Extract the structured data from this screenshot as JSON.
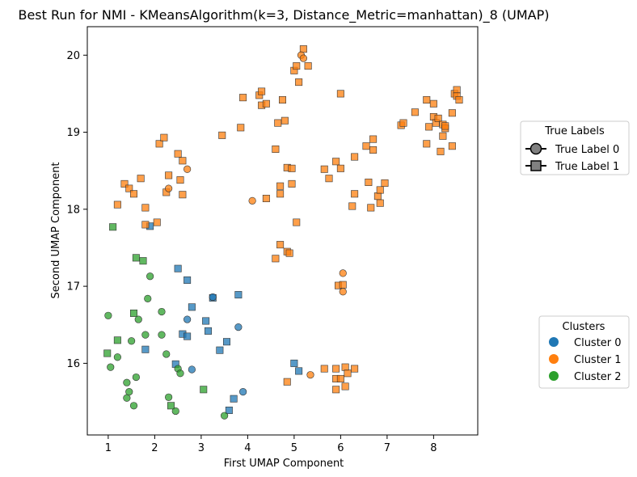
{
  "chart_data": {
    "type": "scatter",
    "title": "Best Run for NMI - KMeansAlgorithm(k=3, Distance_Metric=manhattan)_8 (UMAP)",
    "xlabel": "First UMAP Component",
    "ylabel": "Second UMAP Component",
    "xlim": [
      0.55,
      8.95
    ],
    "ylim": [
      15.07,
      20.37
    ],
    "xticks": [
      1,
      2,
      3,
      4,
      5,
      6,
      7,
      8
    ],
    "yticks": [
      16,
      17,
      18,
      19,
      20
    ],
    "grid": false,
    "legends": [
      {
        "title": "True Labels",
        "placement": "right-upper",
        "entries": [
          {
            "label": "True Label 0",
            "marker": "circle"
          },
          {
            "label": "True Label 1",
            "marker": "square"
          }
        ]
      },
      {
        "title": "Clusters",
        "placement": "right-lower",
        "entries": [
          {
            "label": "Cluster 0",
            "color": "#1f77b4"
          },
          {
            "label": "Cluster 1",
            "color": "#ff7f0e"
          },
          {
            "label": "Cluster 2",
            "color": "#2ca02c"
          }
        ]
      }
    ],
    "series": [
      {
        "name": "Cluster 0",
        "color": "#1f77b4",
        "circles": [
          [
            2.7,
            16.57
          ],
          [
            2.8,
            15.92
          ],
          [
            3.25,
            16.86
          ],
          [
            3.8,
            16.47
          ],
          [
            3.9,
            15.63
          ]
        ],
        "squares": [
          [
            1.9,
            17.78
          ],
          [
            2.5,
            17.23
          ],
          [
            2.7,
            17.08
          ],
          [
            2.8,
            16.73
          ],
          [
            2.6,
            16.38
          ],
          [
            2.7,
            16.35
          ],
          [
            3.1,
            16.55
          ],
          [
            3.15,
            16.42
          ],
          [
            3.25,
            16.85
          ],
          [
            3.8,
            16.89
          ],
          [
            3.55,
            16.28
          ],
          [
            3.4,
            16.17
          ],
          [
            1.8,
            16.18
          ],
          [
            2.45,
            15.99
          ],
          [
            3.7,
            15.54
          ],
          [
            3.6,
            15.39
          ],
          [
            5.0,
            16.0
          ],
          [
            5.1,
            15.9
          ]
        ]
      },
      {
        "name": "Cluster 1",
        "color": "#ff7f0e",
        "circles": [
          [
            2.3,
            18.27
          ],
          [
            2.7,
            18.52
          ],
          [
            4.1,
            18.11
          ],
          [
            5.15,
            20.0
          ],
          [
            5.2,
            19.96
          ],
          [
            5.35,
            15.85
          ],
          [
            6.05,
            17.17
          ],
          [
            6.05,
            16.93
          ]
        ],
        "squares": [
          [
            1.2,
            18.06
          ],
          [
            1.35,
            18.33
          ],
          [
            1.45,
            18.27
          ],
          [
            1.55,
            18.2
          ],
          [
            1.7,
            18.4
          ],
          [
            1.8,
            18.02
          ],
          [
            1.8,
            17.8
          ],
          [
            2.05,
            17.83
          ],
          [
            2.1,
            18.85
          ],
          [
            2.2,
            18.93
          ],
          [
            2.3,
            18.44
          ],
          [
            2.25,
            18.22
          ],
          [
            2.5,
            18.72
          ],
          [
            2.55,
            18.38
          ],
          [
            2.6,
            18.19
          ],
          [
            2.6,
            18.63
          ],
          [
            3.45,
            18.96
          ],
          [
            3.85,
            19.06
          ],
          [
            3.9,
            19.45
          ],
          [
            4.25,
            19.48
          ],
          [
            4.3,
            19.53
          ],
          [
            4.3,
            19.35
          ],
          [
            4.4,
            19.37
          ],
          [
            4.65,
            19.12
          ],
          [
            4.75,
            19.42
          ],
          [
            4.8,
            19.15
          ],
          [
            4.6,
            18.78
          ],
          [
            4.85,
            18.54
          ],
          [
            4.95,
            18.53
          ],
          [
            4.7,
            18.3
          ],
          [
            4.95,
            18.33
          ],
          [
            4.7,
            18.2
          ],
          [
            4.4,
            18.14
          ],
          [
            4.7,
            17.54
          ],
          [
            4.85,
            17.45
          ],
          [
            4.9,
            17.43
          ],
          [
            4.6,
            17.36
          ],
          [
            5.0,
            19.8
          ],
          [
            5.05,
            19.86
          ],
          [
            5.1,
            19.65
          ],
          [
            5.2,
            20.08
          ],
          [
            5.3,
            19.86
          ],
          [
            5.05,
            17.83
          ],
          [
            5.65,
            18.52
          ],
          [
            5.75,
            18.4
          ],
          [
            5.9,
            18.62
          ],
          [
            6.0,
            18.53
          ],
          [
            6.0,
            19.5
          ],
          [
            6.3,
            18.68
          ],
          [
            6.3,
            18.2
          ],
          [
            6.25,
            18.04
          ],
          [
            6.55,
            18.82
          ],
          [
            6.6,
            18.35
          ],
          [
            6.7,
            18.77
          ],
          [
            6.7,
            18.91
          ],
          [
            6.8,
            18.17
          ],
          [
            6.85,
            18.08
          ],
          [
            6.85,
            18.25
          ],
          [
            6.95,
            18.34
          ],
          [
            6.65,
            18.02
          ],
          [
            5.95,
            17.01
          ],
          [
            6.05,
            17.02
          ],
          [
            5.65,
            15.93
          ],
          [
            5.9,
            15.93
          ],
          [
            5.9,
            15.8
          ],
          [
            6.0,
            15.8
          ],
          [
            6.1,
            15.95
          ],
          [
            6.15,
            15.87
          ],
          [
            6.3,
            15.93
          ],
          [
            5.9,
            15.66
          ],
          [
            6.1,
            15.7
          ],
          [
            4.85,
            15.76
          ],
          [
            7.3,
            19.09
          ],
          [
            7.35,
            19.12
          ],
          [
            7.6,
            19.26
          ],
          [
            7.85,
            19.42
          ],
          [
            7.85,
            18.85
          ],
          [
            7.9,
            19.07
          ],
          [
            8.0,
            19.37
          ],
          [
            8.0,
            19.2
          ],
          [
            8.05,
            19.12
          ],
          [
            8.1,
            19.18
          ],
          [
            8.15,
            18.75
          ],
          [
            8.2,
            18.95
          ],
          [
            8.2,
            19.1
          ],
          [
            8.25,
            19.05
          ],
          [
            8.25,
            19.08
          ],
          [
            8.4,
            19.25
          ],
          [
            8.4,
            18.82
          ],
          [
            8.45,
            19.5
          ],
          [
            8.5,
            19.55
          ],
          [
            8.5,
            19.47
          ],
          [
            8.55,
            19.42
          ]
        ]
      },
      {
        "name": "Cluster 2",
        "color": "#2ca02c",
        "circles": [
          [
            1.0,
            16.62
          ],
          [
            1.05,
            15.95
          ],
          [
            1.2,
            16.08
          ],
          [
            1.4,
            15.75
          ],
          [
            1.4,
            15.55
          ],
          [
            1.45,
            15.63
          ],
          [
            1.5,
            16.29
          ],
          [
            1.55,
            15.45
          ],
          [
            1.6,
            15.82
          ],
          [
            1.65,
            16.57
          ],
          [
            1.8,
            16.37
          ],
          [
            1.85,
            16.84
          ],
          [
            1.9,
            17.13
          ],
          [
            2.15,
            16.67
          ],
          [
            2.15,
            16.37
          ],
          [
            2.25,
            16.12
          ],
          [
            2.3,
            15.56
          ],
          [
            2.45,
            15.38
          ],
          [
            2.5,
            15.93
          ],
          [
            2.55,
            15.87
          ],
          [
            3.5,
            15.32
          ]
        ],
        "squares": [
          [
            1.1,
            17.77
          ],
          [
            1.6,
            17.37
          ],
          [
            1.75,
            17.33
          ],
          [
            1.55,
            16.65
          ],
          [
            1.2,
            16.3
          ],
          [
            0.98,
            16.13
          ],
          [
            2.35,
            15.45
          ],
          [
            3.05,
            15.66
          ]
        ]
      }
    ]
  }
}
